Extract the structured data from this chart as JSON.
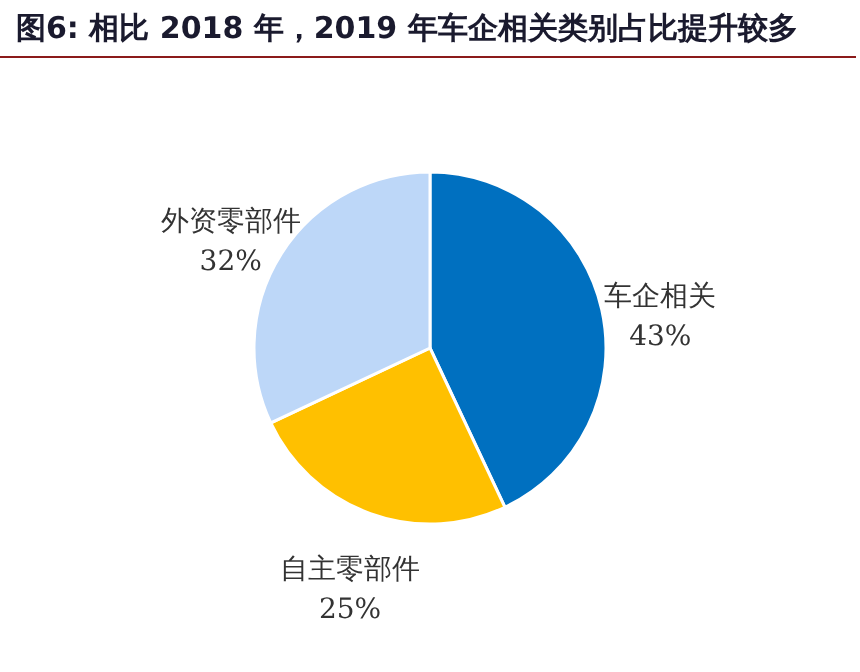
{
  "chart_data": {
    "type": "pie",
    "title": "图6:  相比 2018 年，2019 年车企相关类别占比提升较多",
    "categories": [
      "车企相关",
      "自主零部件",
      "外资零部件"
    ],
    "values": [
      43,
      25,
      32
    ],
    "value_labels": [
      "43%",
      "25%",
      "32%"
    ],
    "colors": [
      "#0070c0",
      "#ffc000",
      "#bdd7f8"
    ]
  }
}
